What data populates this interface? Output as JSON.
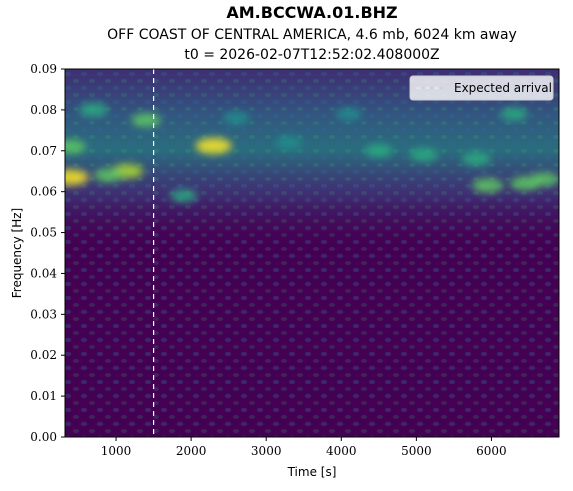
{
  "chart_data": {
    "type": "heatmap",
    "title": "AM.BCCWA.01.BHZ",
    "subtitle_1": "OFF COAST OF CENTRAL AMERICA, 4.6 mb, 6024 km away",
    "subtitle_2": "t0 = 2026-02-07T12:52:02.408000Z",
    "xlabel": "Time [s]",
    "ylabel": "Frequency [Hz]",
    "xlim": [
      320,
      6900
    ],
    "ylim": [
      0.0,
      0.09
    ],
    "x_ticks": [
      {
        "value": 1000,
        "label": "1000"
      },
      {
        "value": 2000,
        "label": "2000"
      },
      {
        "value": 3000,
        "label": "3000"
      },
      {
        "value": 4000,
        "label": "4000"
      },
      {
        "value": 5000,
        "label": "5000"
      },
      {
        "value": 6000,
        "label": "6000"
      }
    ],
    "y_ticks": [
      {
        "value": 0.0,
        "label": "0.00"
      },
      {
        "value": 0.01,
        "label": "0.01"
      },
      {
        "value": 0.02,
        "label": "0.02"
      },
      {
        "value": 0.03,
        "label": "0.03"
      },
      {
        "value": 0.04,
        "label": "0.04"
      },
      {
        "value": 0.05,
        "label": "0.05"
      },
      {
        "value": 0.06,
        "label": "0.06"
      },
      {
        "value": 0.07,
        "label": "0.07"
      },
      {
        "value": 0.08,
        "label": "0.08"
      },
      {
        "value": 0.09,
        "label": "0.09"
      }
    ],
    "colormap": "viridis",
    "grid": false,
    "expected_arrival": {
      "time": 1500,
      "label": "Expected arrival",
      "color": "#ffffff",
      "style": "dashed"
    },
    "legend": {
      "placement": "top-right",
      "entries": [
        "Expected arrival"
      ]
    },
    "hotspots": [
      {
        "t": 2300,
        "f": 0.0712,
        "intensity": 1.0
      },
      {
        "t": 400,
        "f": 0.0635,
        "intensity": 0.95
      },
      {
        "t": 1150,
        "f": 0.065,
        "intensity": 0.75
      },
      {
        "t": 900,
        "f": 0.064,
        "intensity": 0.6
      },
      {
        "t": 5950,
        "f": 0.0615,
        "intensity": 0.7
      },
      {
        "t": 6450,
        "f": 0.062,
        "intensity": 0.65
      },
      {
        "t": 6700,
        "f": 0.063,
        "intensity": 0.6
      },
      {
        "t": 1400,
        "f": 0.0775,
        "intensity": 0.6
      },
      {
        "t": 700,
        "f": 0.08,
        "intensity": 0.55
      },
      {
        "t": 400,
        "f": 0.071,
        "intensity": 0.6
      },
      {
        "t": 5800,
        "f": 0.068,
        "intensity": 0.55
      },
      {
        "t": 5100,
        "f": 0.069,
        "intensity": 0.5
      },
      {
        "t": 4500,
        "f": 0.07,
        "intensity": 0.45
      },
      {
        "t": 3300,
        "f": 0.072,
        "intensity": 0.4
      },
      {
        "t": 6300,
        "f": 0.079,
        "intensity": 0.45
      },
      {
        "t": 2600,
        "f": 0.078,
        "intensity": 0.4
      },
      {
        "t": 1900,
        "f": 0.059,
        "intensity": 0.45
      },
      {
        "t": 4100,
        "f": 0.079,
        "intensity": 0.35
      }
    ]
  }
}
